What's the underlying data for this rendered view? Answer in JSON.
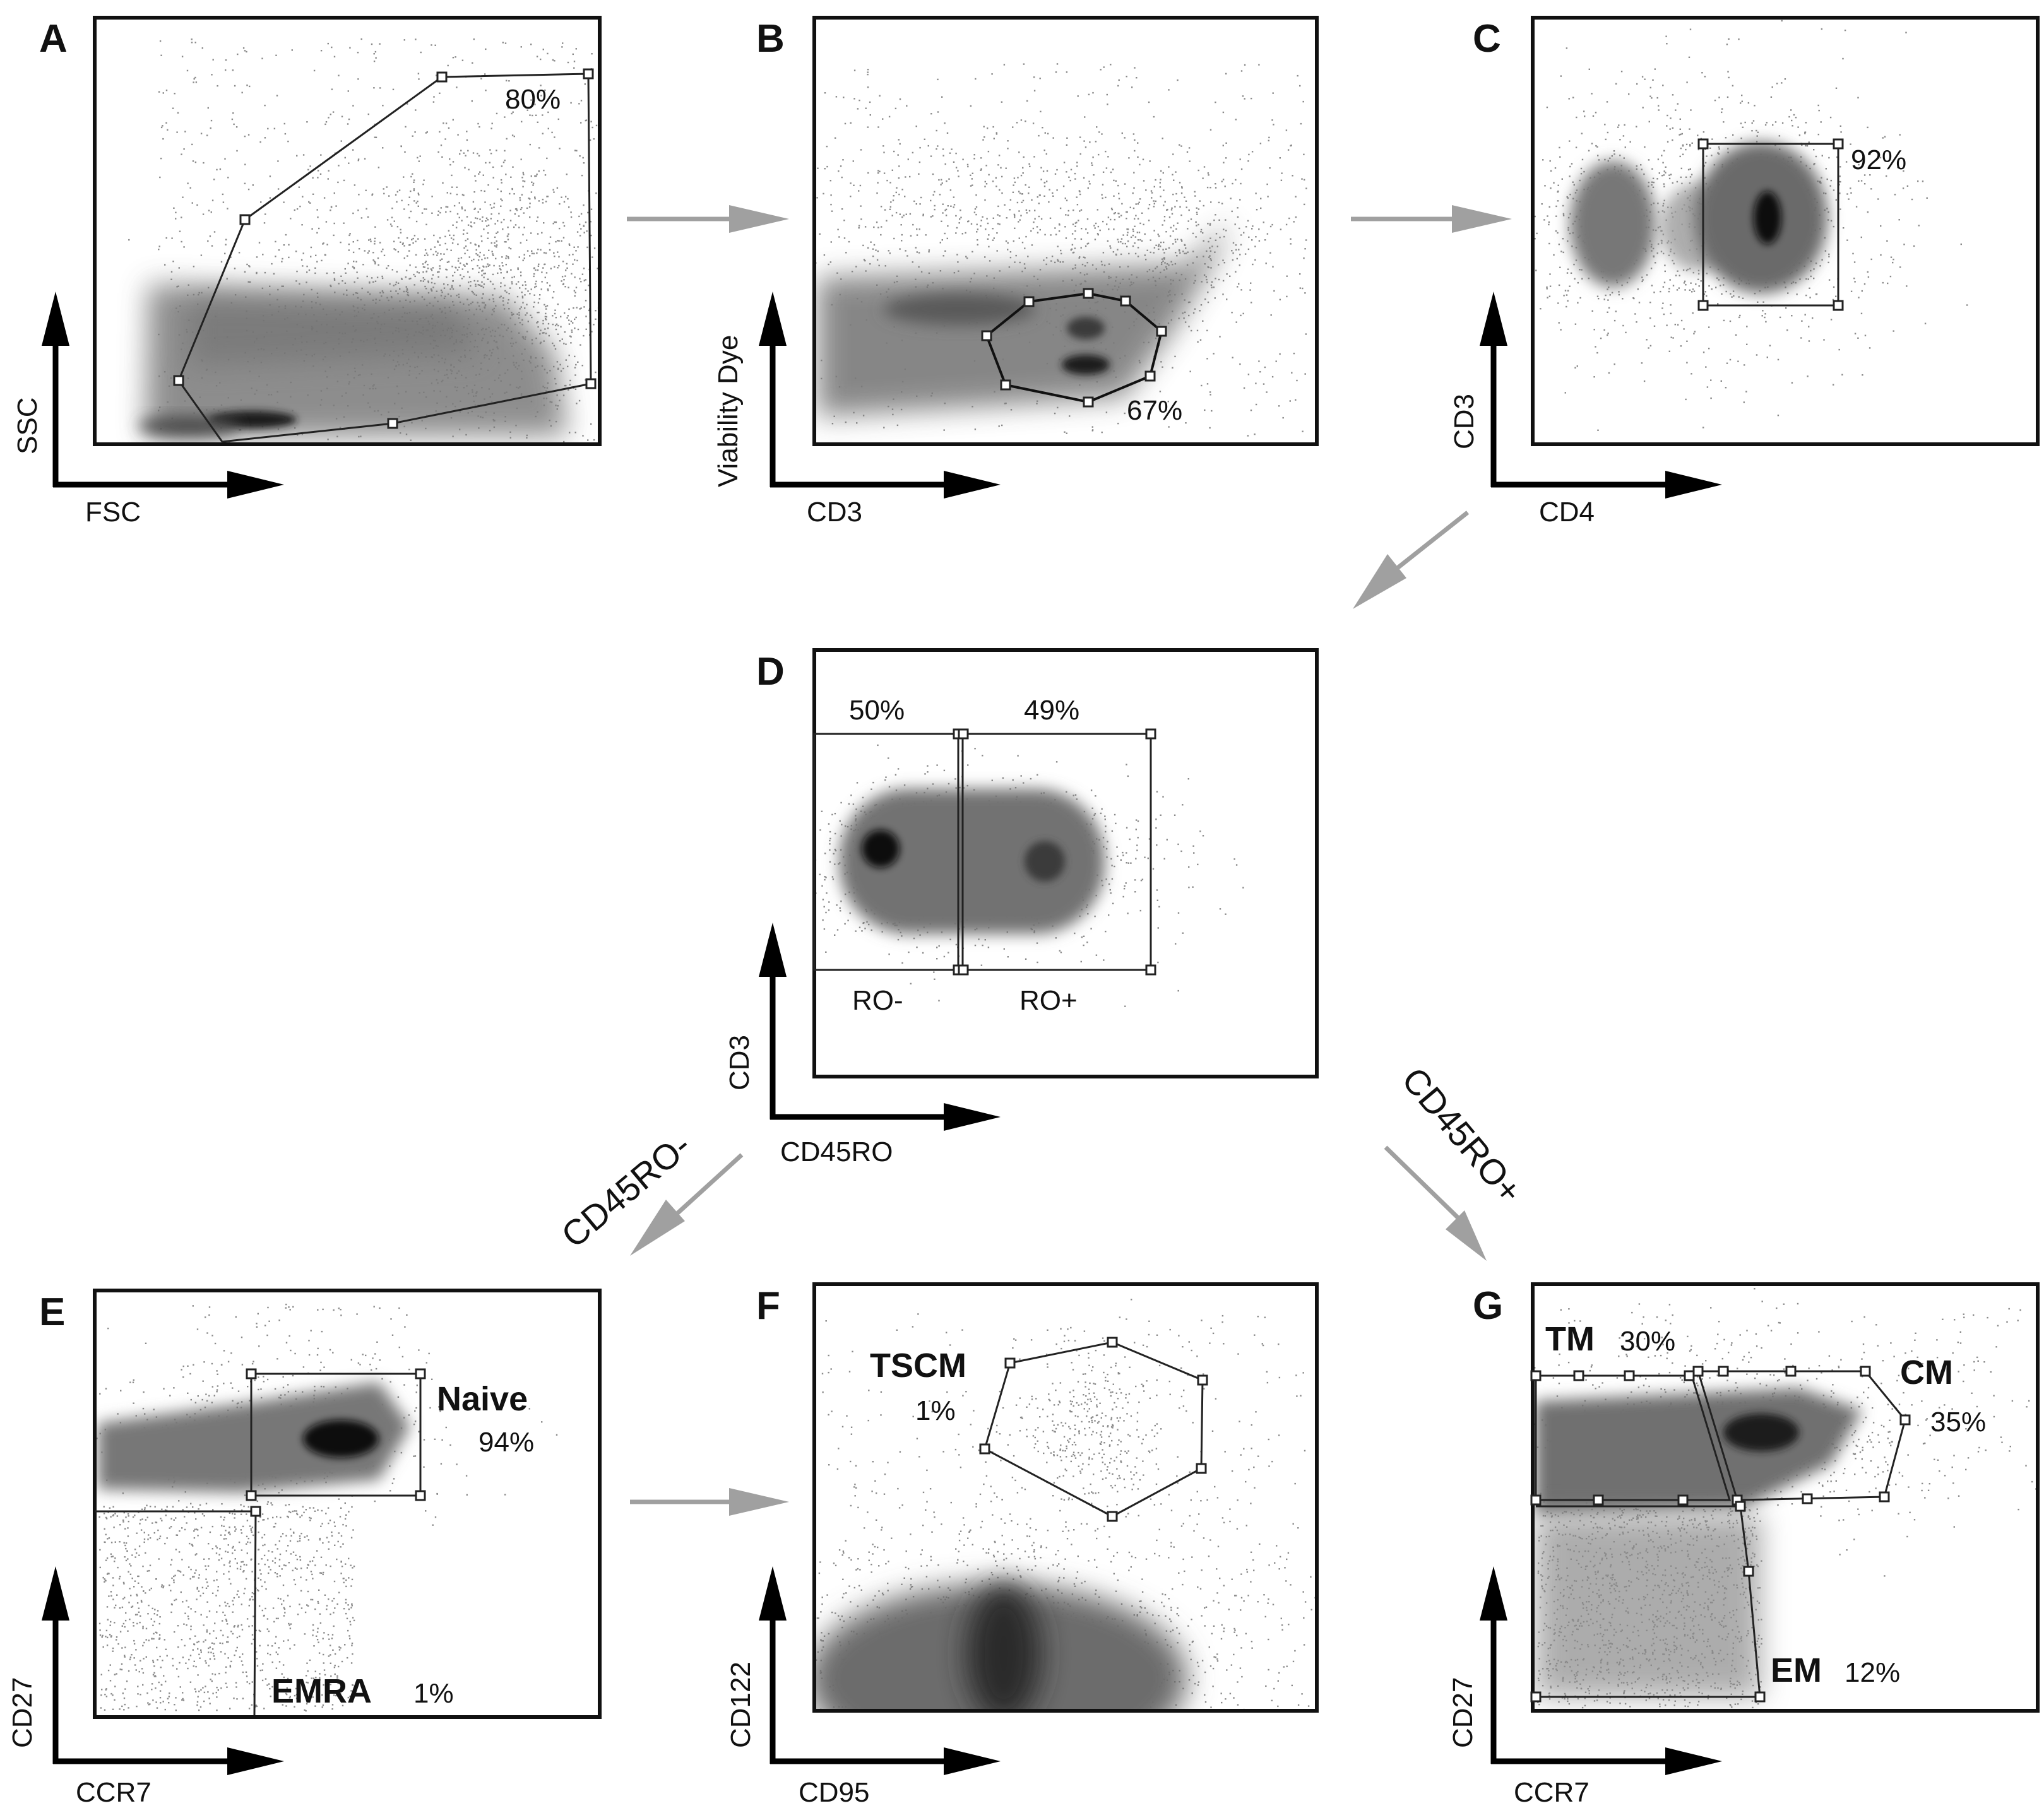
{
  "panels": {
    "A": {
      "letter": "A",
      "x_axis": "FSC",
      "y_axis": "SSC",
      "gate_pct": "80%"
    },
    "B": {
      "letter": "B",
      "x_axis": "CD3",
      "y_axis": "Viability Dye",
      "gate_pct": "67%"
    },
    "C": {
      "letter": "C",
      "x_axis": "CD4",
      "y_axis": "CD3",
      "gate_pct": "92%"
    },
    "D": {
      "letter": "D",
      "x_axis": "CD45RO",
      "y_axis": "CD3",
      "left_pct": "50%",
      "right_pct": "49%",
      "left_gate": "RO-",
      "right_gate": "RO+"
    },
    "E": {
      "letter": "E",
      "x_axis": "CCR7",
      "y_axis": "CD27",
      "naive_label": "Naive",
      "naive_pct": "94%",
      "emra_label": "EMRA",
      "emra_pct": "1%"
    },
    "F": {
      "letter": "F",
      "x_axis": "CD95",
      "y_axis": "CD122",
      "tscm_label": "TSCM",
      "tscm_pct": "1%"
    },
    "G": {
      "letter": "G",
      "x_axis": "CCR7",
      "y_axis": "CD27",
      "tm_label": "TM",
      "tm_pct": "30%",
      "cm_label": "CM",
      "cm_pct": "35%",
      "em_label": "EM",
      "em_pct": "12%"
    }
  },
  "branches": {
    "left": "CD45RO-",
    "right": "CD45RO+"
  },
  "colors": {
    "arrow": "#a0a0a0",
    "frame": "#111111",
    "density_dark": "#1a1a1a",
    "density_mid": "#7a7a7a",
    "dots": "#8a8a8a"
  }
}
